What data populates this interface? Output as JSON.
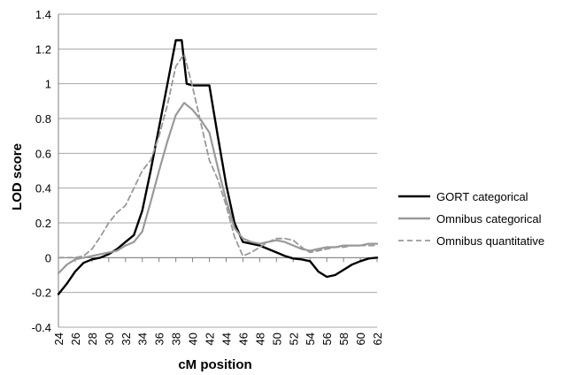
{
  "chart_data": {
    "type": "line",
    "xlabel": "cM position",
    "ylabel": "LOD score",
    "xlim": [
      24,
      62
    ],
    "ylim": [
      -0.4,
      1.4
    ],
    "x_ticks": [
      24,
      26,
      28,
      30,
      32,
      34,
      36,
      38,
      40,
      42,
      44,
      46,
      48,
      50,
      52,
      54,
      56,
      58,
      60,
      62
    ],
    "y_ticks": [
      -0.4,
      -0.2,
      0,
      0.2,
      0.4,
      0.6,
      0.8,
      1,
      1.2,
      1.4
    ],
    "y_tick_labels": [
      "-0.4",
      "-0.2",
      "0",
      "0.2",
      "0.4",
      "0.6",
      "0.8",
      "1",
      "1.2",
      "1.4"
    ],
    "grid": "horizontal",
    "legend_position": "right",
    "series": [
      {
        "name": "GORT categorical",
        "color": "#000000",
        "style": "solid",
        "points": [
          [
            24,
            -0.21
          ],
          [
            25,
            -0.15
          ],
          [
            26,
            -0.08
          ],
          [
            27,
            -0.03
          ],
          [
            28,
            -0.01
          ],
          [
            29,
            0.0
          ],
          [
            30,
            0.02
          ],
          [
            31,
            0.05
          ],
          [
            32,
            0.09
          ],
          [
            33,
            0.13
          ],
          [
            34,
            0.27
          ],
          [
            35,
            0.5
          ],
          [
            36,
            0.75
          ],
          [
            37,
            1.0
          ],
          [
            38,
            1.25
          ],
          [
            38.7,
            1.25
          ],
          [
            39.3,
            1.0
          ],
          [
            40,
            0.99
          ],
          [
            41,
            0.99
          ],
          [
            42,
            0.99
          ],
          [
            43,
            0.7
          ],
          [
            44,
            0.42
          ],
          [
            45,
            0.2
          ],
          [
            46,
            0.09
          ],
          [
            47,
            0.08
          ],
          [
            48,
            0.07
          ],
          [
            49,
            0.05
          ],
          [
            50,
            0.03
          ],
          [
            51,
            0.01
          ],
          [
            52,
            -0.005
          ],
          [
            53,
            -0.01
          ],
          [
            54,
            -0.02
          ],
          [
            55,
            -0.08
          ],
          [
            56,
            -0.11
          ],
          [
            57,
            -0.1
          ],
          [
            58,
            -0.07
          ],
          [
            59,
            -0.04
          ],
          [
            60,
            -0.02
          ],
          [
            61,
            -0.005
          ],
          [
            62,
            0.0
          ]
        ]
      },
      {
        "name": "Omnibus categorical",
        "color": "#999999",
        "style": "solid",
        "points": [
          [
            24,
            -0.09
          ],
          [
            25,
            -0.04
          ],
          [
            26,
            -0.01
          ],
          [
            27,
            0.0
          ],
          [
            28,
            0.01
          ],
          [
            29,
            0.02
          ],
          [
            30,
            0.03
          ],
          [
            31,
            0.04
          ],
          [
            32,
            0.07
          ],
          [
            33,
            0.09
          ],
          [
            34,
            0.15
          ],
          [
            35,
            0.32
          ],
          [
            36,
            0.5
          ],
          [
            37,
            0.67
          ],
          [
            38,
            0.82
          ],
          [
            39,
            0.89
          ],
          [
            40,
            0.85
          ],
          [
            41,
            0.79
          ],
          [
            42,
            0.72
          ],
          [
            43,
            0.52
          ],
          [
            44,
            0.33
          ],
          [
            45,
            0.17
          ],
          [
            46,
            0.11
          ],
          [
            47,
            0.09
          ],
          [
            48,
            0.08
          ],
          [
            49,
            0.09
          ],
          [
            50,
            0.1
          ],
          [
            51,
            0.09
          ],
          [
            52,
            0.07
          ],
          [
            53,
            0.05
          ],
          [
            54,
            0.04
          ],
          [
            55,
            0.05
          ],
          [
            56,
            0.06
          ],
          [
            57,
            0.06
          ],
          [
            58,
            0.07
          ],
          [
            59,
            0.07
          ],
          [
            60,
            0.07
          ],
          [
            61,
            0.08
          ],
          [
            62,
            0.08
          ]
        ]
      },
      {
        "name": "Omnibus quantitative",
        "color": "#999999",
        "style": "dashed",
        "points": [
          [
            24,
            0.0
          ],
          [
            25,
            0.0
          ],
          [
            26,
            0.0
          ],
          [
            27,
            0.01
          ],
          [
            28,
            0.05
          ],
          [
            29,
            0.12
          ],
          [
            30,
            0.2
          ],
          [
            31,
            0.26
          ],
          [
            32,
            0.3
          ],
          [
            33,
            0.4
          ],
          [
            34,
            0.5
          ],
          [
            35,
            0.56
          ],
          [
            36,
            0.7
          ],
          [
            37,
            0.88
          ],
          [
            38,
            1.1
          ],
          [
            39,
            1.17
          ],
          [
            40,
            0.98
          ],
          [
            41,
            0.77
          ],
          [
            42,
            0.56
          ],
          [
            43,
            0.45
          ],
          [
            44,
            0.3
          ],
          [
            45,
            0.12
          ],
          [
            46,
            0.01
          ],
          [
            47,
            0.03
          ],
          [
            48,
            0.06
          ],
          [
            49,
            0.09
          ],
          [
            50,
            0.11
          ],
          [
            51,
            0.11
          ],
          [
            52,
            0.1
          ],
          [
            53,
            0.06
          ],
          [
            54,
            0.03
          ],
          [
            55,
            0.04
          ],
          [
            56,
            0.05
          ],
          [
            57,
            0.06
          ],
          [
            58,
            0.06
          ],
          [
            59,
            0.07
          ],
          [
            60,
            0.07
          ],
          [
            61,
            0.07
          ],
          [
            62,
            0.07
          ]
        ]
      }
    ]
  }
}
